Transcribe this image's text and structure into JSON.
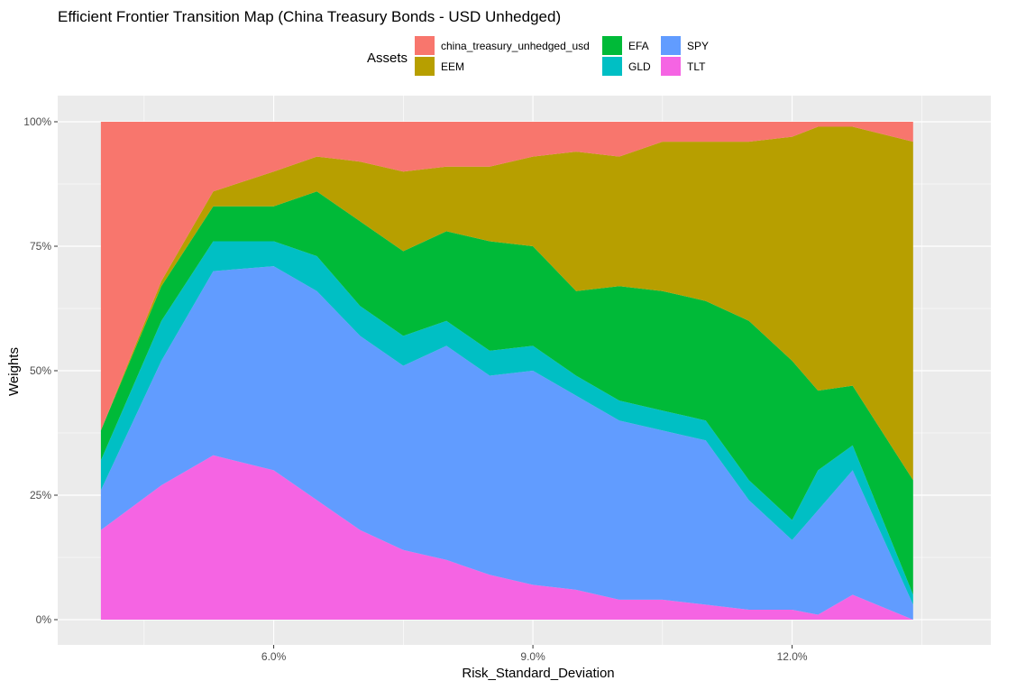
{
  "chart_data": {
    "type": "area",
    "stacked": true,
    "title": "Efficient Frontier Transition Map (China Treasury Bonds - USD Unhedged)",
    "xlabel": "Risk_Standard_Deviation",
    "ylabel": "Weights",
    "xlim": [
      3.5,
      14.3
    ],
    "ylim": [
      0,
      1
    ],
    "x_ticks": [
      6.0,
      9.0,
      12.0
    ],
    "x_tick_labels": [
      "6.0%",
      "9.0%",
      "12.0%"
    ],
    "y_ticks": [
      0,
      0.25,
      0.5,
      0.75,
      1.0
    ],
    "y_tick_labels": [
      "0%",
      "25%",
      "50%",
      "75%",
      "100%"
    ],
    "legend": {
      "title": "Assets",
      "position": "top",
      "entries": [
        "china_treasury_unhedged_usd",
        "EEM",
        "EFA",
        "GLD",
        "SPY",
        "TLT"
      ]
    },
    "x": [
      4.0,
      4.7,
      5.3,
      6.0,
      6.5,
      7.0,
      7.5,
      8.0,
      8.5,
      9.0,
      9.5,
      10.0,
      10.5,
      11.0,
      11.5,
      12.0,
      12.3,
      12.7,
      13.4
    ],
    "series": [
      {
        "name": "TLT",
        "color": "#F564E3",
        "values": [
          0.18,
          0.27,
          0.33,
          0.3,
          0.24,
          0.18,
          0.14,
          0.12,
          0.09,
          0.07,
          0.06,
          0.04,
          0.04,
          0.03,
          0.02,
          0.02,
          0.01,
          0.05,
          0.0
        ]
      },
      {
        "name": "SPY",
        "color": "#619CFF",
        "values": [
          0.08,
          0.25,
          0.37,
          0.41,
          0.42,
          0.39,
          0.37,
          0.43,
          0.4,
          0.43,
          0.39,
          0.36,
          0.34,
          0.33,
          0.22,
          0.14,
          0.21,
          0.25,
          0.03
        ]
      },
      {
        "name": "GLD",
        "color": "#00BFC4",
        "values": [
          0.06,
          0.08,
          0.06,
          0.05,
          0.07,
          0.06,
          0.06,
          0.05,
          0.05,
          0.05,
          0.04,
          0.04,
          0.04,
          0.04,
          0.04,
          0.04,
          0.08,
          0.05,
          0.02
        ]
      },
      {
        "name": "EFA",
        "color": "#00BA38",
        "values": [
          0.06,
          0.07,
          0.07,
          0.07,
          0.13,
          0.17,
          0.17,
          0.18,
          0.22,
          0.2,
          0.17,
          0.23,
          0.24,
          0.24,
          0.32,
          0.32,
          0.16,
          0.12,
          0.23
        ]
      },
      {
        "name": "EEM",
        "color": "#B79F00",
        "values": [
          0.0,
          0.01,
          0.03,
          0.07,
          0.07,
          0.12,
          0.16,
          0.13,
          0.15,
          0.18,
          0.28,
          0.26,
          0.3,
          0.32,
          0.36,
          0.45,
          0.53,
          0.52,
          0.68
        ]
      },
      {
        "name": "china_treasury_unhedged_usd",
        "color": "#F8766D",
        "values": [
          0.62,
          0.32,
          0.14,
          0.1,
          0.07,
          0.08,
          0.1,
          0.09,
          0.09,
          0.07,
          0.06,
          0.07,
          0.04,
          0.04,
          0.04,
          0.03,
          0.01,
          0.01,
          0.04
        ]
      }
    ]
  }
}
